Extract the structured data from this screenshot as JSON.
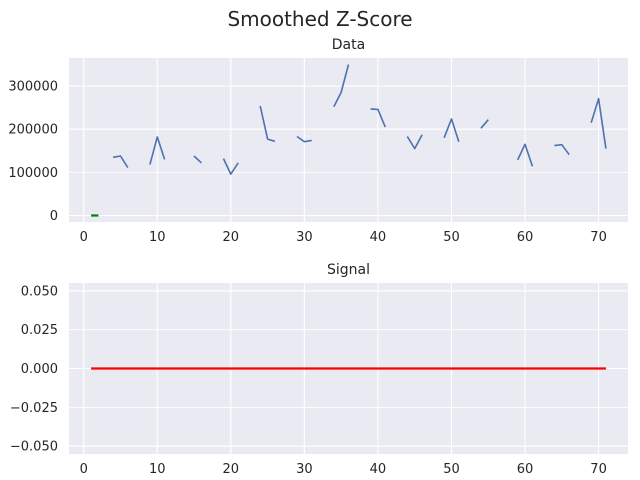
{
  "chart_data": {
    "title": "Smoothed Z-Score",
    "panels": [
      {
        "type": "line",
        "title": "Data",
        "xlim": [
          -2,
          74
        ],
        "ylim": [
          -15000,
          365000
        ],
        "xticks": [
          0,
          10,
          20,
          30,
          40,
          50,
          60,
          70
        ],
        "xtick_labels": [
          "0",
          "10",
          "20",
          "30",
          "40",
          "50",
          "60",
          "70"
        ],
        "yticks": [
          0,
          100000,
          200000,
          300000
        ],
        "ytick_labels": [
          "0",
          "100000",
          "200000",
          "300000"
        ],
        "grid": true,
        "series": [
          {
            "color": "#4c72b0",
            "segments": [
              [
                [
                  4,
                  135000
                ],
                [
                  5,
                  138000
                ],
                [
                  6,
                  111000
                ]
              ],
              [
                [
                  9,
                  118000
                ],
                [
                  10,
                  182000
                ],
                [
                  11,
                  130000
                ]
              ],
              [
                [
                  15,
                  138000
                ],
                [
                  16,
                  122000
                ]
              ],
              [
                [
                  19,
                  132000
                ],
                [
                  20,
                  96000
                ],
                [
                  21,
                  122000
                ]
              ],
              [
                [
                  24,
                  254000
                ],
                [
                  25,
                  177000
                ],
                [
                  26,
                  172000
                ]
              ],
              [
                [
                  29,
                  183000
                ],
                [
                  30,
                  171000
                ],
                [
                  31,
                  174000
                ]
              ],
              [
                [
                  34,
                  252000
                ],
                [
                  35,
                  285000
                ],
                [
                  36,
                  350000
                ]
              ],
              [
                [
                  39,
                  247000
                ],
                [
                  40,
                  246000
                ],
                [
                  41,
                  205000
                ]
              ],
              [
                [
                  44,
                  183000
                ],
                [
                  45,
                  155000
                ],
                [
                  46,
                  187000
                ]
              ],
              [
                [
                  49,
                  180000
                ],
                [
                  50,
                  224000
                ],
                [
                  51,
                  171000
                ]
              ],
              [
                [
                  54,
                  202000
                ],
                [
                  55,
                  222000
                ]
              ],
              [
                [
                  59,
                  129000
                ],
                [
                  60,
                  165000
                ],
                [
                  61,
                  114000
                ]
              ],
              [
                [
                  64,
                  162000
                ],
                [
                  65,
                  164000
                ],
                [
                  66,
                  141000
                ]
              ],
              [
                [
                  69,
                  215000
                ],
                [
                  70,
                  271000
                ],
                [
                  71,
                  155000
                ]
              ]
            ]
          },
          {
            "color": "#008000",
            "segments": [
              [
                [
                  1,
                  0
                ],
                [
                  2,
                  0
                ]
              ]
            ]
          }
        ]
      },
      {
        "type": "line",
        "title": "Signal",
        "xlim": [
          -2,
          74
        ],
        "ylim": [
          -0.055,
          0.055
        ],
        "xticks": [
          0,
          10,
          20,
          30,
          40,
          50,
          60,
          70
        ],
        "xtick_labels": [
          "0",
          "10",
          "20",
          "30",
          "40",
          "50",
          "60",
          "70"
        ],
        "yticks": [
          -0.05,
          -0.025,
          0,
          0.025,
          0.05
        ],
        "ytick_labels": [
          "−0.050",
          "−0.025",
          "0.000",
          "0.025",
          "0.050"
        ],
        "grid": true,
        "series": [
          {
            "color": "#ff0000",
            "segments": [
              [
                [
                  1,
                  0
                ],
                [
                  71,
                  0
                ]
              ]
            ]
          }
        ]
      }
    ]
  }
}
